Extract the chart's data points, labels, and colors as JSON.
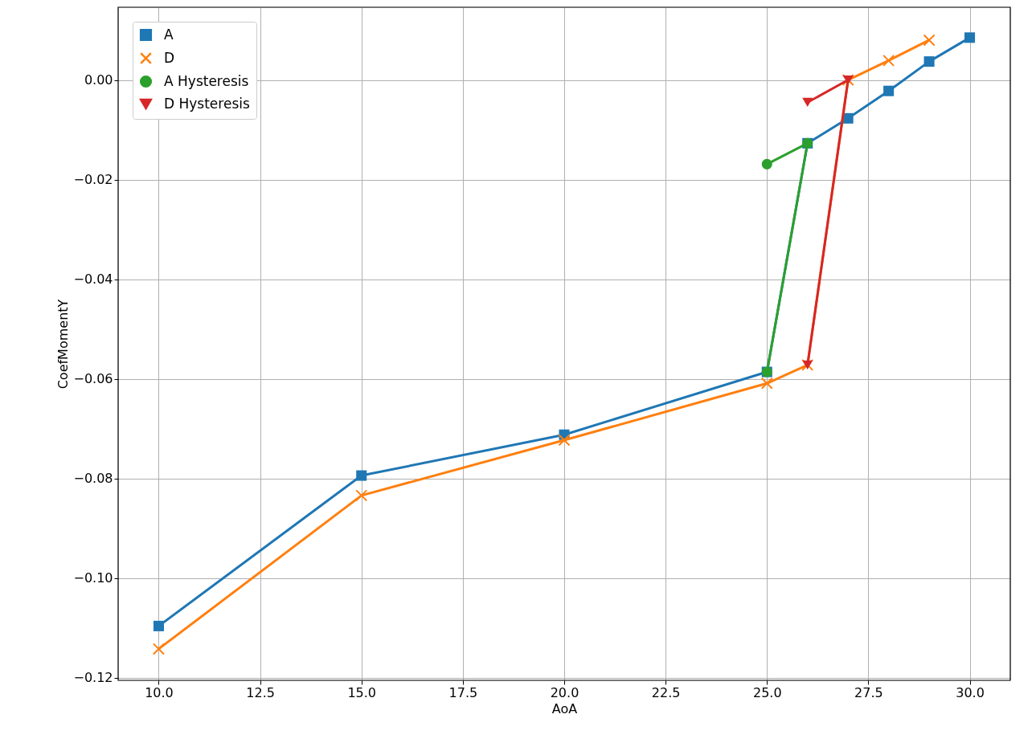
{
  "chart_data": {
    "type": "line",
    "xlabel": "AoA",
    "ylabel": "CoefMomentY",
    "xlim": [
      9.0,
      31.0
    ],
    "ylim": [
      -0.1205,
      0.0146
    ],
    "xticks": [
      {
        "value": 10,
        "label": "10.0"
      },
      {
        "value": 12.5,
        "label": "12.5"
      },
      {
        "value": 15,
        "label": "15.0"
      },
      {
        "value": 17.5,
        "label": "17.5"
      },
      {
        "value": 20,
        "label": "20.0"
      },
      {
        "value": 22.5,
        "label": "22.5"
      },
      {
        "value": 25,
        "label": "25.0"
      },
      {
        "value": 27.5,
        "label": "27.5"
      },
      {
        "value": 30,
        "label": "30.0"
      }
    ],
    "yticks": [
      {
        "value": -0.12,
        "label": "−0.12"
      },
      {
        "value": -0.1,
        "label": "−0.10"
      },
      {
        "value": -0.08,
        "label": "−0.08"
      },
      {
        "value": -0.06,
        "label": "−0.06"
      },
      {
        "value": -0.04,
        "label": "−0.04"
      },
      {
        "value": -0.02,
        "label": "−0.02"
      },
      {
        "value": 0,
        "label": "0.00"
      }
    ],
    "grid": true,
    "legend": "top left",
    "line_style": "solid",
    "series": [
      {
        "name": "A",
        "color": "#1f77b4",
        "marker": "square",
        "x": [
          10,
          15,
          20,
          25,
          26,
          27,
          28,
          29,
          30
        ],
        "values": [
          -0.1096,
          -0.0794,
          -0.0712,
          -0.0586,
          -0.0127,
          -0.0077,
          -0.0022,
          0.0037,
          0.0085
        ]
      },
      {
        "name": "D",
        "color": "#ff7f0e",
        "marker": "cross",
        "x": [
          10,
          15,
          20,
          25,
          26,
          27,
          28,
          29
        ],
        "values": [
          -0.1142,
          -0.0834,
          -0.0723,
          -0.0609,
          -0.0572,
          0.0,
          0.0039,
          0.008
        ]
      },
      {
        "name": "A Hysteresis",
        "color": "#2ca02c",
        "marker": "circle",
        "x": [
          25,
          26,
          25
        ],
        "values": [
          -0.0169,
          -0.0127,
          -0.0586
        ]
      },
      {
        "name": "D Hysteresis",
        "color": "#d62728",
        "marker": "triangle",
        "x": [
          26,
          27,
          26
        ],
        "values": [
          -0.0045,
          0.0,
          -0.0572
        ]
      }
    ]
  }
}
